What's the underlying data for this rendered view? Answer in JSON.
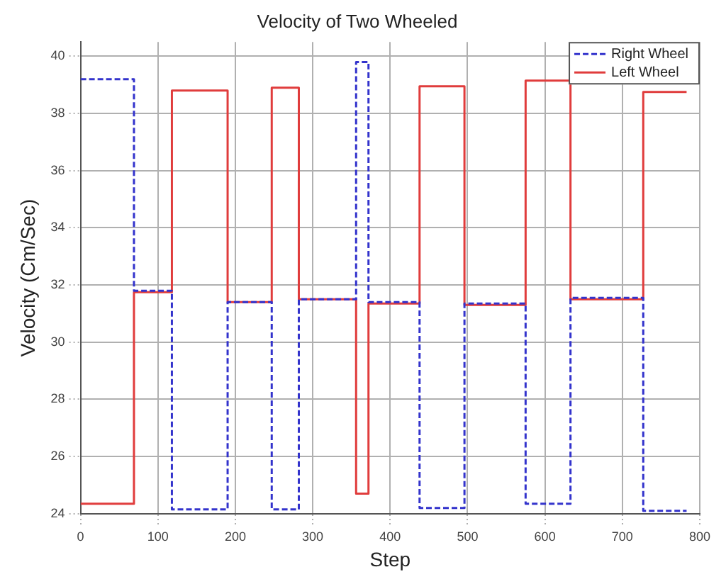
{
  "chart_data": {
    "type": "step",
    "title": "Velocity of Two Wheeled",
    "xlabel": "Step",
    "ylabel": "Velocity (Cm/Sec)",
    "xlim": [
      0,
      800
    ],
    "xticks": [
      0,
      100,
      200,
      300,
      400,
      500,
      600,
      700,
      800
    ],
    "ylim": [
      24,
      40.5
    ],
    "yticks": [
      24,
      26,
      28,
      30,
      32,
      34,
      36,
      38,
      40
    ],
    "grid": true,
    "legend": "top right",
    "marker": "none",
    "series": [
      {
        "name": "Right Wheel",
        "color": "#3333cc",
        "line_style": "dashed",
        "x": [
          0,
          69,
          118,
          190,
          247,
          282,
          356,
          372,
          438,
          496,
          575,
          633,
          727,
          783
        ],
        "values": [
          39.2,
          31.8,
          24.15,
          31.4,
          24.15,
          31.5,
          39.8,
          31.4,
          24.2,
          31.35,
          24.35,
          31.55,
          24.1,
          24.1
        ]
      },
      {
        "name": "Left Wheel",
        "color": "#e03c3c",
        "line_style": "solid",
        "x": [
          0,
          69,
          118,
          190,
          247,
          282,
          356,
          372,
          438,
          496,
          575,
          633,
          727,
          783
        ],
        "values": [
          24.35,
          31.75,
          38.8,
          31.4,
          38.9,
          31.5,
          24.7,
          31.35,
          38.95,
          31.3,
          39.15,
          31.5,
          38.75,
          38.75
        ]
      }
    ]
  }
}
